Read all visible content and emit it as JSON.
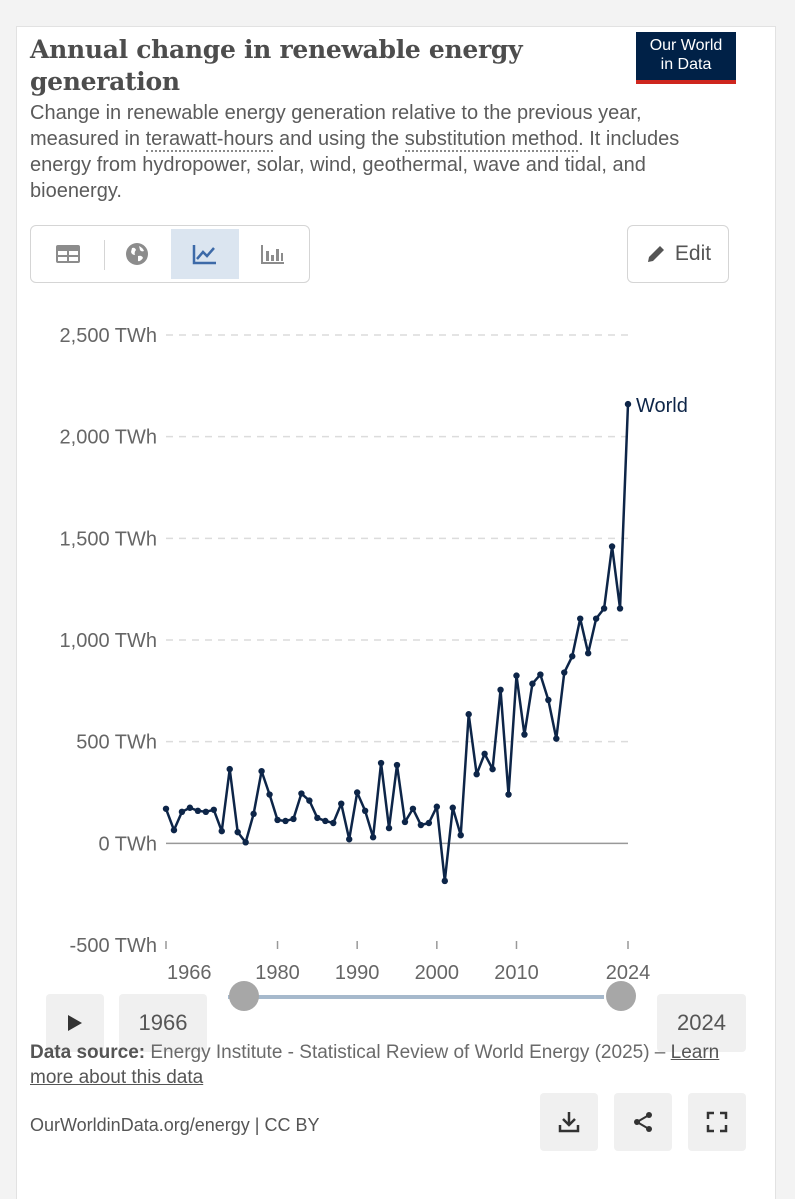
{
  "header": {
    "title": "Annual change in renewable energy generation",
    "logo_line1": "Our World",
    "logo_line2": "in Data",
    "subtitle_pre": "Change in renewable energy generation relative to the previous year, measured in ",
    "subtitle_link1": "terawatt-hours",
    "subtitle_mid": " and using the ",
    "subtitle_link2": "substitution method",
    "subtitle_post": ". It includes energy from hydropower, solar, wind, geothermal, wave and tidal, and bioenergy."
  },
  "toolbar": {
    "tabs": [
      "table",
      "map",
      "line-chart",
      "bar-chart"
    ],
    "active_tab": "line-chart",
    "edit_label": "Edit"
  },
  "colors": {
    "line": "#0d2548",
    "accent": "#002147",
    "logo_red": "#ce261e",
    "grid": "#dcdcdc"
  },
  "chart_data": {
    "type": "line",
    "title": "Annual change in renewable energy generation",
    "ylabel": "TWh",
    "ylim": [
      -500,
      2500
    ],
    "yticks": [
      -500,
      0,
      500,
      1000,
      1500,
      2000,
      2500
    ],
    "ytick_labels": [
      "-500 TWh",
      "0 TWh",
      "500 TWh",
      "1,000 TWh",
      "1,500 TWh",
      "2,000 TWh",
      "2,500 TWh"
    ],
    "xlim": [
      1966,
      2024
    ],
    "xticks": [
      1966,
      1980,
      1990,
      2000,
      2010,
      2024
    ],
    "xtick_labels": [
      "1966",
      "1980",
      "1990",
      "2000",
      "2010",
      "2024"
    ],
    "series": [
      {
        "name": "World",
        "x": [
          1966,
          1967,
          1968,
          1969,
          1970,
          1971,
          1972,
          1973,
          1974,
          1975,
          1976,
          1977,
          1978,
          1979,
          1980,
          1981,
          1982,
          1983,
          1984,
          1985,
          1986,
          1987,
          1988,
          1989,
          1990,
          1991,
          1992,
          1993,
          1994,
          1995,
          1996,
          1997,
          1998,
          1999,
          2000,
          2001,
          2002,
          2003,
          2004,
          2005,
          2006,
          2007,
          2008,
          2009,
          2010,
          2011,
          2012,
          2013,
          2014,
          2015,
          2016,
          2017,
          2018,
          2019,
          2020,
          2021,
          2022,
          2023,
          2024
        ],
        "values": [
          170,
          65,
          155,
          175,
          160,
          155,
          165,
          60,
          365,
          55,
          5,
          145,
          355,
          240,
          115,
          110,
          120,
          245,
          210,
          125,
          110,
          100,
          195,
          20,
          250,
          160,
          30,
          395,
          75,
          385,
          105,
          170,
          90,
          100,
          180,
          -185,
          175,
          40,
          635,
          340,
          440,
          365,
          755,
          240,
          825,
          535,
          785,
          830,
          705,
          515,
          840,
          920,
          1105,
          935,
          1105,
          1155,
          1460,
          1155,
          2160
        ]
      }
    ]
  },
  "timeline": {
    "start_year": "1966",
    "end_year": "2024",
    "start_fraction": 0,
    "end_fraction": 1
  },
  "footer": {
    "source_label": "Data source:",
    "source_text": " Energy Institute - Statistical Review of World Energy (2025) – ",
    "learn_more": "Learn more about this data",
    "site": "OurWorldinData.org/energy | CC BY"
  }
}
